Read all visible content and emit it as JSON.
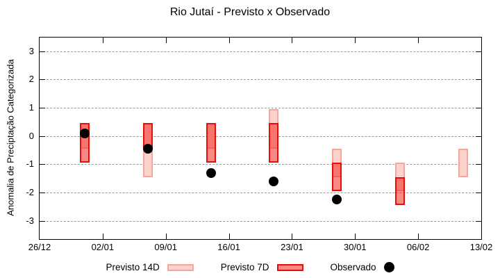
{
  "chart_data": {
    "type": "range-bar+scatter",
    "title": "Rio Jutaí - Previsto x Observado",
    "ylabel": "Anomalia de Preciptação Categorizada",
    "xlabel": "",
    "x_tick_labels": [
      "26/12",
      "02/01",
      "09/01",
      "16/01",
      "23/01",
      "30/01",
      "06/02",
      "13/02"
    ],
    "y_ticks": [
      3,
      2,
      1,
      0,
      -1,
      -2,
      -3
    ],
    "ylim": [
      -3.65,
      3.48
    ],
    "x_range_days": 49,
    "grid": "horizontal dashed gridlines at integers",
    "legend_position": "bottom center",
    "series": [
      {
        "name": "Previsto 14D",
        "type": "range-bar",
        "fill": "#fcd2cb",
        "border": "#f5a69d",
        "points": [
          {
            "date": "31/12",
            "day": 5,
            "low": -0.45,
            "high": 0.45
          },
          {
            "date": "07/01",
            "day": 12,
            "low": -1.45,
            "high": 0.45
          },
          {
            "date": "14/01",
            "day": 19,
            "low": -0.45,
            "high": 0.45
          },
          {
            "date": "21/01",
            "day": 26,
            "low": -0.45,
            "high": 0.95
          },
          {
            "date": "28/01",
            "day": 33,
            "low": -1.45,
            "high": -0.45
          },
          {
            "date": "04/02",
            "day": 40,
            "low": -1.95,
            "high": -0.95
          },
          {
            "date": "11/02",
            "day": 47,
            "low": -1.45,
            "high": -0.45
          }
        ]
      },
      {
        "name": "Previsto 7D",
        "type": "range-bar",
        "fill": "rgba(246,40,30,0.55)",
        "border": "#e60d0a",
        "overlap_fill_with_14d": "#f8766d",
        "points": [
          {
            "date": "31/12",
            "day": 5,
            "low": -0.95,
            "high": 0.45
          },
          {
            "date": "07/01",
            "day": 12,
            "low": -0.45,
            "high": 0.45
          },
          {
            "date": "14/01",
            "day": 19,
            "low": -0.95,
            "high": 0.45
          },
          {
            "date": "21/01",
            "day": 26,
            "low": -0.95,
            "high": 0.45
          },
          {
            "date": "28/01",
            "day": 33,
            "low": -1.95,
            "high": -0.95
          },
          {
            "date": "04/02",
            "day": 40,
            "low": -2.45,
            "high": -1.45
          }
        ]
      },
      {
        "name": "Observado",
        "type": "scatter",
        "color": "#000000",
        "points": [
          {
            "date": "31/12",
            "day": 5,
            "value": 0.1
          },
          {
            "date": "07/01",
            "day": 12,
            "value": -0.45
          },
          {
            "date": "14/01",
            "day": 19,
            "value": -1.3
          },
          {
            "date": "21/01",
            "day": 26,
            "value": -1.6
          },
          {
            "date": "28/01",
            "day": 33,
            "value": -2.25
          }
        ]
      }
    ]
  }
}
